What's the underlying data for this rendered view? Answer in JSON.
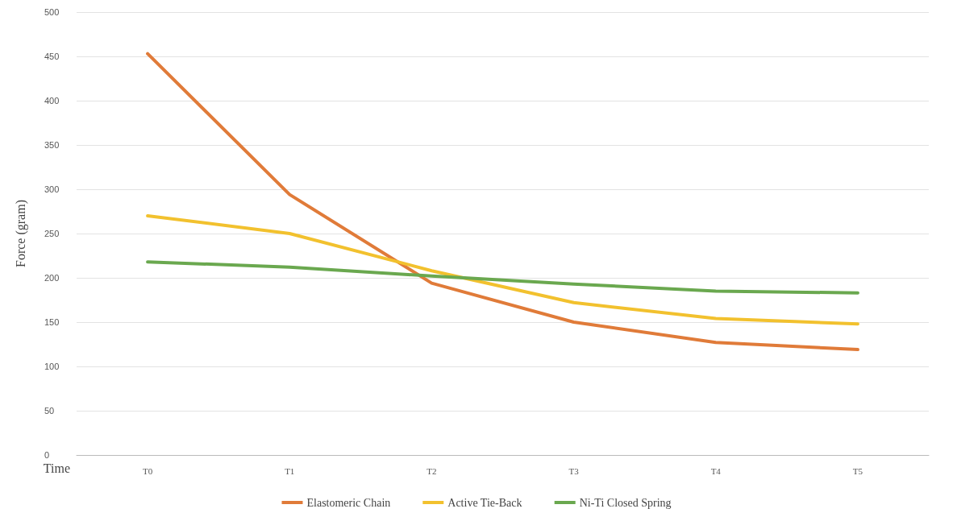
{
  "chart_data": {
    "type": "line",
    "xlabel": "Time",
    "ylabel": "Force (gram)",
    "categories": [
      "T0",
      "T1",
      "T2",
      "T3",
      "T4",
      "T5"
    ],
    "series": [
      {
        "name": "Elastomeric Chain",
        "color": "#e07b39",
        "values": [
          453,
          294,
          194,
          150,
          127,
          119
        ]
      },
      {
        "name": "Active Tie-Back",
        "color": "#f2c12e",
        "values": [
          270,
          250,
          208,
          172,
          154,
          148
        ]
      },
      {
        "name": "Ni-Ti Closed Spring",
        "color": "#6aa84f",
        "values": [
          218,
          212,
          202,
          193,
          185,
          183
        ]
      }
    ],
    "ylim": [
      0,
      500
    ],
    "yticks": [
      0,
      50,
      100,
      150,
      200,
      250,
      300,
      350,
      400,
      450,
      500
    ],
    "grid": "y",
    "legend": "bottom",
    "marker": "none",
    "line_style": "solid"
  }
}
